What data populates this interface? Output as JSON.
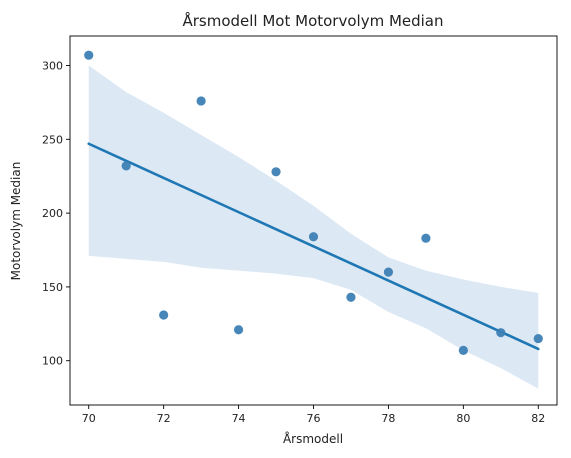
{
  "chart_data": {
    "type": "scatter",
    "title": "Årsmodell Mot Motorvolym Median",
    "xlabel": "Årsmodell",
    "ylabel": "Motorvolym Median",
    "xlim": [
      69.5,
      82.5
    ],
    "ylim": [
      70,
      320
    ],
    "xticks": [
      70,
      72,
      74,
      76,
      78,
      80,
      82
    ],
    "yticks": [
      100,
      150,
      200,
      250,
      300
    ],
    "points": [
      {
        "x": 70,
        "y": 307
      },
      {
        "x": 71,
        "y": 232
      },
      {
        "x": 72,
        "y": 131
      },
      {
        "x": 73,
        "y": 276
      },
      {
        "x": 74,
        "y": 121
      },
      {
        "x": 75,
        "y": 228
      },
      {
        "x": 76,
        "y": 184
      },
      {
        "x": 77,
        "y": 143
      },
      {
        "x": 78,
        "y": 160
      },
      {
        "x": 79,
        "y": 183
      },
      {
        "x": 80,
        "y": 107
      },
      {
        "x": 81,
        "y": 119
      },
      {
        "x": 82,
        "y": 115
      }
    ],
    "regression": {
      "x": [
        70,
        82
      ],
      "y": [
        247,
        108
      ]
    },
    "confidence_band": {
      "x": [
        70,
        71,
        72,
        73,
        74,
        75,
        76,
        77,
        78,
        79,
        80,
        81,
        82
      ],
      "upper": [
        300,
        282,
        268,
        253,
        238,
        222,
        205,
        186,
        170,
        161,
        155,
        150,
        146
      ],
      "lower": [
        171,
        169,
        167,
        163,
        161,
        159,
        156,
        148,
        133,
        122,
        107,
        95,
        81
      ]
    },
    "grid": false,
    "colors": {
      "point": "#3d7fb4",
      "line": "#1f77b4",
      "band": "#dce9f5"
    }
  }
}
